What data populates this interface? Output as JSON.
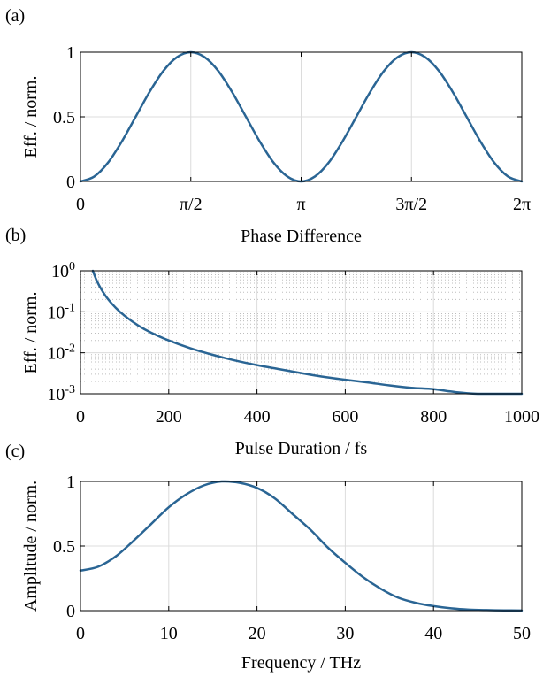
{
  "colors": {
    "curve": "#2a6594",
    "grid": "#dcdcdc",
    "axis": "#000000"
  },
  "panels": {
    "a": {
      "label": "(a)"
    },
    "b": {
      "label": "(b)"
    },
    "c": {
      "label": "(c)"
    }
  },
  "chart_data": [
    {
      "id": "a",
      "type": "line",
      "title": "",
      "xlabel": "Phase Difference",
      "ylabel": "Eff. / norm.",
      "xlim": [
        0,
        6.2832
      ],
      "ylim": [
        0,
        1
      ],
      "xscale": "linear",
      "yscale": "linear",
      "grid": true,
      "xticks": [
        {
          "value": 0,
          "label": "0"
        },
        {
          "value": 1.5708,
          "label": "π/2"
        },
        {
          "value": 3.1416,
          "label": "π"
        },
        {
          "value": 4.7124,
          "label": "3π/2"
        },
        {
          "value": 6.2832,
          "label": "2π"
        }
      ],
      "yticks": [
        {
          "value": 0,
          "label": "0"
        },
        {
          "value": 0.5,
          "label": "0.5"
        },
        {
          "value": 1,
          "label": "1"
        }
      ],
      "series": [
        {
          "x": [
            0,
            0.1963,
            0.3927,
            0.589,
            0.7854,
            0.9817,
            1.1781,
            1.3744,
            1.5708,
            1.7671,
            1.9635,
            2.1598,
            2.3562,
            2.5525,
            2.7489,
            2.9452,
            3.1416,
            3.3379,
            3.5343,
            3.7306,
            3.927,
            4.1233,
            4.3197,
            4.516,
            4.7124,
            4.9087,
            5.1051,
            5.3014,
            5.4978,
            5.6941,
            5.8905,
            6.0868,
            6.2832
          ],
          "y": [
            0,
            0.038,
            0.146,
            0.309,
            0.5,
            0.691,
            0.854,
            0.962,
            1,
            0.962,
            0.854,
            0.691,
            0.5,
            0.309,
            0.146,
            0.038,
            0,
            0.038,
            0.146,
            0.309,
            0.5,
            0.691,
            0.854,
            0.962,
            1,
            0.962,
            0.854,
            0.691,
            0.5,
            0.309,
            0.146,
            0.038,
            0
          ]
        }
      ]
    },
    {
      "id": "b",
      "type": "line",
      "title": "",
      "xlabel": "Pulse Duration / fs",
      "ylabel": "Eff. / norm.",
      "xlim": [
        0,
        1000
      ],
      "ylim": [
        0.001,
        1
      ],
      "xscale": "linear",
      "yscale": "log",
      "grid": true,
      "minor_grid": true,
      "xticks": [
        {
          "value": 0,
          "label": "0"
        },
        {
          "value": 200,
          "label": "200"
        },
        {
          "value": 400,
          "label": "400"
        },
        {
          "value": 600,
          "label": "600"
        },
        {
          "value": 800,
          "label": "800"
        },
        {
          "value": 1000,
          "label": "1000"
        }
      ],
      "yticks": [
        {
          "value": 0.001,
          "base": "10",
          "exp": "-3"
        },
        {
          "value": 0.01,
          "base": "10",
          "exp": "-2"
        },
        {
          "value": 0.1,
          "base": "10",
          "exp": "-1"
        },
        {
          "value": 1,
          "base": "10",
          "exp": "0"
        }
      ],
      "series": [
        {
          "x": [
            28,
            35,
            45,
            60,
            80,
            100,
            130,
            160,
            200,
            250,
            300,
            350,
            400,
            450,
            500,
            550,
            600,
            650,
            700,
            750,
            800,
            850,
            900,
            950,
            1000
          ],
          "y": [
            1,
            0.64,
            0.39,
            0.22,
            0.125,
            0.08,
            0.047,
            0.031,
            0.02,
            0.0128,
            0.0089,
            0.0065,
            0.005,
            0.004,
            0.0032,
            0.0026,
            0.0022,
            0.0019,
            0.0016,
            0.0014,
            0.0013,
            0.0011,
            0.001,
            0.0009,
            0.00082
          ]
        }
      ]
    },
    {
      "id": "c",
      "type": "line",
      "title": "",
      "xlabel": "Frequency / THz",
      "ylabel": "Amplitude / norm.",
      "xlim": [
        0,
        50
      ],
      "ylim": [
        0,
        1
      ],
      "xscale": "linear",
      "yscale": "linear",
      "grid": true,
      "xticks": [
        {
          "value": 0,
          "label": "0"
        },
        {
          "value": 10,
          "label": "10"
        },
        {
          "value": 20,
          "label": "20"
        },
        {
          "value": 30,
          "label": "30"
        },
        {
          "value": 40,
          "label": "40"
        },
        {
          "value": 50,
          "label": "50"
        }
      ],
      "yticks": [
        {
          "value": 0,
          "label": "0"
        },
        {
          "value": 0.5,
          "label": "0.5"
        },
        {
          "value": 1,
          "label": "1"
        }
      ],
      "series": [
        {
          "x": [
            0,
            2,
            4,
            6,
            8,
            10,
            12,
            14,
            16,
            18,
            20,
            22,
            24,
            26,
            28,
            30,
            32,
            34,
            36,
            38,
            40,
            42,
            44,
            46,
            48,
            50
          ],
          "y": [
            0.31,
            0.34,
            0.42,
            0.54,
            0.67,
            0.8,
            0.9,
            0.97,
            1,
            0.99,
            0.95,
            0.87,
            0.75,
            0.63,
            0.49,
            0.37,
            0.26,
            0.17,
            0.1,
            0.06,
            0.035,
            0.018,
            0.008,
            0.004,
            0.002,
            0.001
          ]
        }
      ]
    }
  ]
}
